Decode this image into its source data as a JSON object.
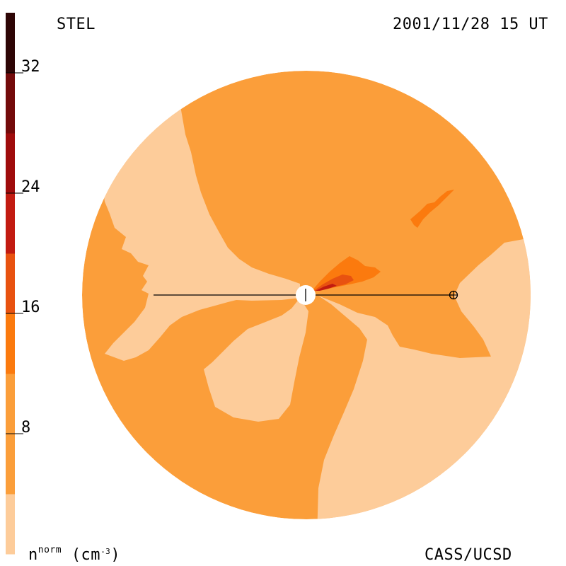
{
  "header": {
    "instrument": "STEL",
    "datetime": "2001/11/28 15 UT"
  },
  "footer": {
    "credit": "CASS/UCSD"
  },
  "colorbar": {
    "unit_base": "n",
    "unit_sup": "norm",
    "unit_paren_open": "(cm",
    "unit_exp": "-3",
    "unit_paren_close": ")",
    "ticks": [
      {
        "value": 32,
        "label": "32"
      },
      {
        "value": 24,
        "label": "24"
      },
      {
        "value": 16,
        "label": "16"
      },
      {
        "value": 8,
        "label": "8"
      }
    ],
    "range": [
      0,
      36
    ],
    "levels": [
      {
        "from": 0,
        "to": 4,
        "color": "#FDCC9A"
      },
      {
        "from": 4,
        "to": 12,
        "color": "#FB9E3A"
      },
      {
        "from": 12,
        "to": 16,
        "color": "#FB7A0E"
      },
      {
        "from": 16,
        "to": 20,
        "color": "#E85210"
      },
      {
        "from": 20,
        "to": 24,
        "color": "#C21B11"
      },
      {
        "from": 24,
        "to": 28,
        "color": "#9F0C0C"
      },
      {
        "from": 28,
        "to": 32,
        "color": "#730A0A"
      },
      {
        "from": 32,
        "to": 36,
        "color": "#2E0505"
      }
    ]
  },
  "map": {
    "background_level_color": "#FB9E3A",
    "low_level_color": "#FDCC9A",
    "enhanced_color_1": "#FB7A0E",
    "enhanced_color_2": "#E85210",
    "enhanced_color_3": "#C21B11"
  },
  "markers": {
    "sun": "sun-marker",
    "earth": "earth-marker"
  }
}
